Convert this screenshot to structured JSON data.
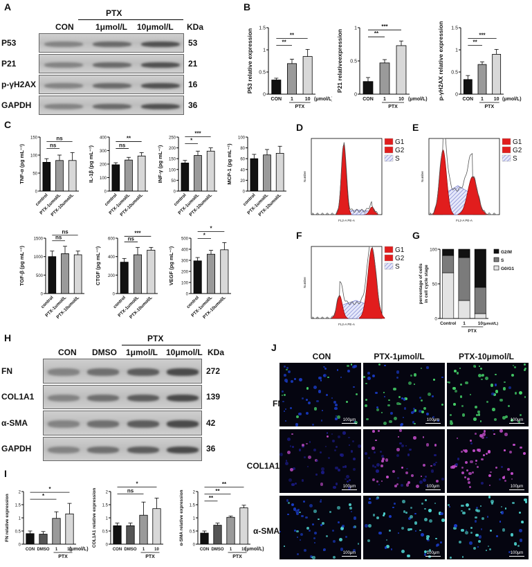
{
  "panel_letters": [
    "A",
    "B",
    "C",
    "D",
    "E",
    "F",
    "G",
    "H",
    "I",
    "J"
  ],
  "blot_A": {
    "header_group": "PTX",
    "columns": [
      "CON",
      "1μmol/L",
      "10μmol/L"
    ],
    "kda_header": "KDa",
    "rows": [
      {
        "label": "P53",
        "kda": "53"
      },
      {
        "label": "P21",
        "kda": "21"
      },
      {
        "label": "p-γH2AX",
        "kda": "16"
      },
      {
        "label": "GAPDH",
        "kda": "36"
      }
    ]
  },
  "blot_H": {
    "header_group": "PTX",
    "columns": [
      "CON",
      "DMSO",
      "1μmol/L",
      "10μmol/L"
    ],
    "kda_header": "KDa",
    "rows": [
      {
        "label": "FN",
        "kda": "272"
      },
      {
        "label": "COL1A1",
        "kda": "139"
      },
      {
        "label": "α-SMA",
        "kda": "42"
      },
      {
        "label": "GAPDH",
        "kda": "36"
      }
    ]
  },
  "microscopy_J": {
    "columns": [
      "CON",
      "PTX-1μmol/L",
      "PTX-10μmol/L"
    ],
    "rows": [
      "FN",
      "COL1A1",
      "α-SMA"
    ],
    "scale_bar": "100μm"
  },
  "flow_legend": [
    "G1",
    "G2",
    "S"
  ],
  "flow_axis": {
    "ylabel": "Number",
    "xlabel": "FL2-A PE-A"
  },
  "chart_data": [
    {
      "id": "B1",
      "type": "bar",
      "ylabel": "P53 relative expression",
      "categories": [
        "CON",
        "1",
        "10"
      ],
      "group_label": "PTX",
      "unit_label": "(μmol/L)",
      "values": [
        0.32,
        0.69,
        0.85
      ],
      "errors": [
        0.04,
        0.1,
        0.16
      ],
      "ylim": [
        0,
        1.5
      ],
      "yticks": [
        0,
        0.5,
        1.0,
        1.5
      ],
      "sig": [
        {
          "from": 0,
          "to": 1,
          "text": "**"
        },
        {
          "from": 0,
          "to": 2,
          "text": "**"
        }
      ],
      "colors": [
        "#111111",
        "#9a9a9a",
        "#d8d8d8"
      ]
    },
    {
      "id": "B2",
      "type": "bar",
      "ylabel": "P21 relativeexpression",
      "categories": [
        "CON",
        "1",
        "10"
      ],
      "group_label": "PTX",
      "unit_label": "(μmol/L)",
      "values": [
        0.19,
        0.47,
        0.73
      ],
      "errors": [
        0.06,
        0.05,
        0.07
      ],
      "ylim": [
        0,
        1.0
      ],
      "yticks": [
        0,
        0.5,
        1.0
      ],
      "sig": [
        {
          "from": 0,
          "to": 1,
          "text": "**"
        },
        {
          "from": 0,
          "to": 2,
          "text": "***"
        }
      ],
      "colors": [
        "#111111",
        "#9a9a9a",
        "#d8d8d8"
      ]
    },
    {
      "id": "B3",
      "type": "bar",
      "ylabel": "p-γH2AX relative expression",
      "categories": [
        "CON",
        "1",
        "10"
      ],
      "group_label": "PTX",
      "unit_label": "(μmol/L)",
      "values": [
        0.33,
        0.67,
        0.9
      ],
      "errors": [
        0.09,
        0.06,
        0.11
      ],
      "ylim": [
        0,
        1.5
      ],
      "yticks": [
        0,
        0.5,
        1.0,
        1.5
      ],
      "sig": [
        {
          "from": 0,
          "to": 1,
          "text": "**"
        },
        {
          "from": 0,
          "to": 2,
          "text": "***"
        }
      ],
      "colors": [
        "#111111",
        "#9a9a9a",
        "#d8d8d8"
      ]
    },
    {
      "id": "C1",
      "type": "bar",
      "ylabel": "TNF-α (pg mL⁻¹)",
      "categories": [
        "control",
        "PTX-1umol/L",
        "PTX-10umol/L"
      ],
      "values": [
        80,
        85,
        85
      ],
      "errors": [
        10,
        15,
        22
      ],
      "ylim": [
        0,
        150
      ],
      "yticks": [
        0,
        50,
        100,
        150
      ],
      "sig": [
        {
          "from": 0,
          "to": 1,
          "text": "ns"
        },
        {
          "from": 0,
          "to": 2,
          "text": "ns"
        }
      ],
      "colors": [
        "#111111",
        "#9a9a9a",
        "#d8d8d8"
      ]
    },
    {
      "id": "C2",
      "type": "bar",
      "ylabel": "IL-1β (pg mL⁻¹)",
      "categories": [
        "control",
        "PTX-1umol/L",
        "PTX-10umol/L"
      ],
      "values": [
        195,
        230,
        260
      ],
      "errors": [
        15,
        20,
        25
      ],
      "ylim": [
        0,
        400
      ],
      "yticks": [
        0,
        100,
        200,
        300,
        400
      ],
      "sig": [
        {
          "from": 0,
          "to": 1,
          "text": "ns"
        },
        {
          "from": 0,
          "to": 2,
          "text": "**"
        }
      ],
      "colors": [
        "#111111",
        "#9a9a9a",
        "#d8d8d8"
      ]
    },
    {
      "id": "C3",
      "type": "bar",
      "ylabel": "INF-γ (pg mL⁻¹)",
      "categories": [
        "control",
        "PTX-1umol/L",
        "PTX-10umol/L"
      ],
      "values": [
        130,
        165,
        185
      ],
      "errors": [
        12,
        20,
        15
      ],
      "ylim": [
        0,
        250
      ],
      "yticks": [
        0,
        50,
        100,
        150,
        200,
        250
      ],
      "sig": [
        {
          "from": 0,
          "to": 1,
          "text": "*"
        },
        {
          "from": 0,
          "to": 2,
          "text": "***"
        }
      ],
      "colors": [
        "#111111",
        "#9a9a9a",
        "#d8d8d8"
      ]
    },
    {
      "id": "C4",
      "type": "bar",
      "ylabel": "MCP-1 (pg mL⁻¹)",
      "categories": [
        "control",
        "PTX-1umol/L",
        "PTX-10umol/L"
      ],
      "values": [
        60,
        67,
        70
      ],
      "errors": [
        8,
        10,
        13
      ],
      "ylim": [
        0,
        100
      ],
      "yticks": [
        0,
        20,
        40,
        60,
        80,
        100
      ],
      "sig": [],
      "colors": [
        "#111111",
        "#9a9a9a",
        "#d8d8d8"
      ]
    },
    {
      "id": "C5",
      "type": "bar",
      "ylabel": "TGF-β (pg mL⁻¹)",
      "categories": [
        "control",
        "PTX-1umol/L",
        "PTX-10umol/L"
      ],
      "values": [
        1000,
        1080,
        1050
      ],
      "errors": [
        150,
        200,
        100
      ],
      "ylim": [
        0,
        1500
      ],
      "yticks": [
        0,
        500,
        1000,
        1500
      ],
      "sig": [
        {
          "from": 0,
          "to": 1,
          "text": "ns"
        },
        {
          "from": 0,
          "to": 2,
          "text": "ns"
        }
      ],
      "colors": [
        "#111111",
        "#9a9a9a",
        "#d8d8d8"
      ]
    },
    {
      "id": "C6",
      "type": "bar",
      "ylabel": "CTGF (pg mL⁻¹)",
      "categories": [
        "control",
        "PTX-1umol/L",
        "PTX-10umol/L"
      ],
      "values": [
        340,
        420,
        470
      ],
      "errors": [
        40,
        80,
        30
      ],
      "ylim": [
        0,
        600
      ],
      "yticks": [
        0,
        200,
        400,
        600
      ],
      "sig": [
        {
          "from": 0,
          "to": 1,
          "text": "ns"
        },
        {
          "from": 0,
          "to": 2,
          "text": "***"
        }
      ],
      "colors": [
        "#111111",
        "#9a9a9a",
        "#d8d8d8"
      ]
    },
    {
      "id": "C7",
      "type": "bar",
      "ylabel": "VEGF (pg mL⁻¹)",
      "categories": [
        "control",
        "PTX-1umol/L",
        "PTX-10umol/L"
      ],
      "values": [
        295,
        355,
        395
      ],
      "errors": [
        30,
        35,
        65
      ],
      "ylim": [
        0,
        500
      ],
      "yticks": [
        0,
        100,
        200,
        300,
        400,
        500
      ],
      "sig": [
        {
          "from": 0,
          "to": 1,
          "text": "*"
        },
        {
          "from": 0,
          "to": 2,
          "text": "*"
        }
      ],
      "colors": [
        "#111111",
        "#9a9a9a",
        "#d8d8d8"
      ]
    },
    {
      "id": "G",
      "type": "bar",
      "stacked": true,
      "ylabel": "percentage of cells in cell cycle stage",
      "categories": [
        "Control",
        "1",
        "10"
      ],
      "group_label": "PTX",
      "unit_label": "(μmol/L)",
      "ylim": [
        0,
        100
      ],
      "yticks": [
        0,
        50,
        100
      ],
      "series": [
        {
          "name": "G0/G1",
          "values": [
            66,
            26,
            7
          ],
          "color": "#e3e3e3"
        },
        {
          "name": "S",
          "values": [
            25,
            62,
            38
          ],
          "color": "#7b7b7b"
        },
        {
          "name": "G2/M",
          "values": [
            9,
            12,
            55
          ],
          "color": "#111111"
        }
      ]
    },
    {
      "id": "I1",
      "type": "bar",
      "ylabel": "FN  relative expression",
      "categories": [
        "CON",
        "DMSO",
        "1",
        "10"
      ],
      "group_label": "PTX",
      "unit_label": "(μmol/L)",
      "values": [
        0.4,
        0.38,
        0.98,
        1.15
      ],
      "errors": [
        0.1,
        0.1,
        0.25,
        0.4
      ],
      "ylim": [
        0,
        2.0
      ],
      "yticks": [
        0,
        0.5,
        1.0,
        1.5,
        2.0
      ],
      "sig": [
        {
          "from": 0,
          "to": 2,
          "text": "*"
        },
        {
          "from": 0,
          "to": 3,
          "text": "*"
        }
      ],
      "colors": [
        "#111111",
        "#555555",
        "#9a9a9a",
        "#d8d8d8"
      ]
    },
    {
      "id": "I2",
      "type": "bar",
      "ylabel": "COL1A1 relative expression",
      "categories": [
        "CON",
        "DMSO",
        "1",
        "10"
      ],
      "group_label": "PTX",
      "values": [
        0.7,
        0.7,
        1.1,
        1.35
      ],
      "errors": [
        0.1,
        0.1,
        0.5,
        0.4
      ],
      "ylim": [
        0,
        2.0
      ],
      "yticks": [
        0,
        0.5,
        1.0,
        1.5,
        2.0
      ],
      "sig": [
        {
          "from": 0,
          "to": 2,
          "text": "ns"
        },
        {
          "from": 0,
          "to": 3,
          "text": "*"
        }
      ],
      "colors": [
        "#111111",
        "#555555",
        "#9a9a9a",
        "#d8d8d8"
      ]
    },
    {
      "id": "I3",
      "type": "bar",
      "ylabel": "α-SMA relative expression",
      "categories": [
        "CON",
        "DMSO",
        "1",
        "10"
      ],
      "group_label": "PTX",
      "unit_label": "(μmol/L)",
      "values": [
        0.42,
        0.72,
        1.02,
        1.38
      ],
      "errors": [
        0.08,
        0.08,
        0.05,
        0.1
      ],
      "ylim": [
        0,
        2.0
      ],
      "yticks": [
        0,
        0.5,
        1.0,
        1.5,
        2.0
      ],
      "sig": [
        {
          "from": 0,
          "to": 2,
          "text": "**"
        },
        {
          "from": 0,
          "to": 3,
          "text": "**"
        },
        {
          "from": 0,
          "to": 1,
          "text": "**"
        }
      ],
      "colors": [
        "#111111",
        "#555555",
        "#9a9a9a",
        "#d8d8d8"
      ]
    }
  ]
}
